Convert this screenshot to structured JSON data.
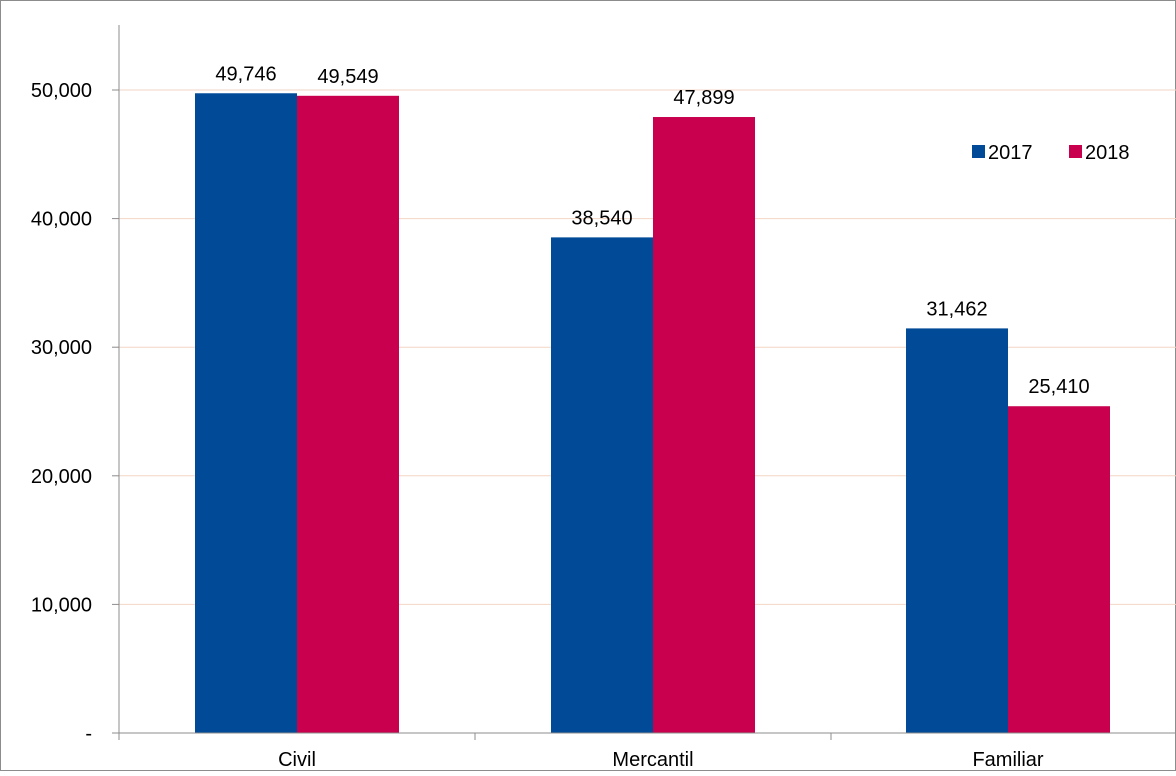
{
  "chart_data": {
    "type": "bar",
    "categories": [
      "Civil",
      "Mercantil",
      "Familiar"
    ],
    "series": [
      {
        "name": "2017",
        "values": [
          49746,
          38540,
          31462
        ],
        "color": "#004A98"
      },
      {
        "name": "2018",
        "values": [
          49549,
          47899,
          25410
        ],
        "color": "#C8004D"
      }
    ],
    "data_labels": [
      [
        "49,746",
        "38,540",
        "31,462"
      ],
      [
        "49,549",
        "47,899",
        "25,410"
      ]
    ],
    "yticks": [
      0,
      10000,
      20000,
      30000,
      40000,
      50000
    ],
    "ytick_labels": [
      "-",
      "10,000",
      "20,000",
      "30,000",
      "40,000",
      "50,000"
    ],
    "ylim": [
      0,
      57000
    ],
    "grid": true,
    "gridline_color": "#F2D6C4",
    "legend_position": "top-right"
  }
}
